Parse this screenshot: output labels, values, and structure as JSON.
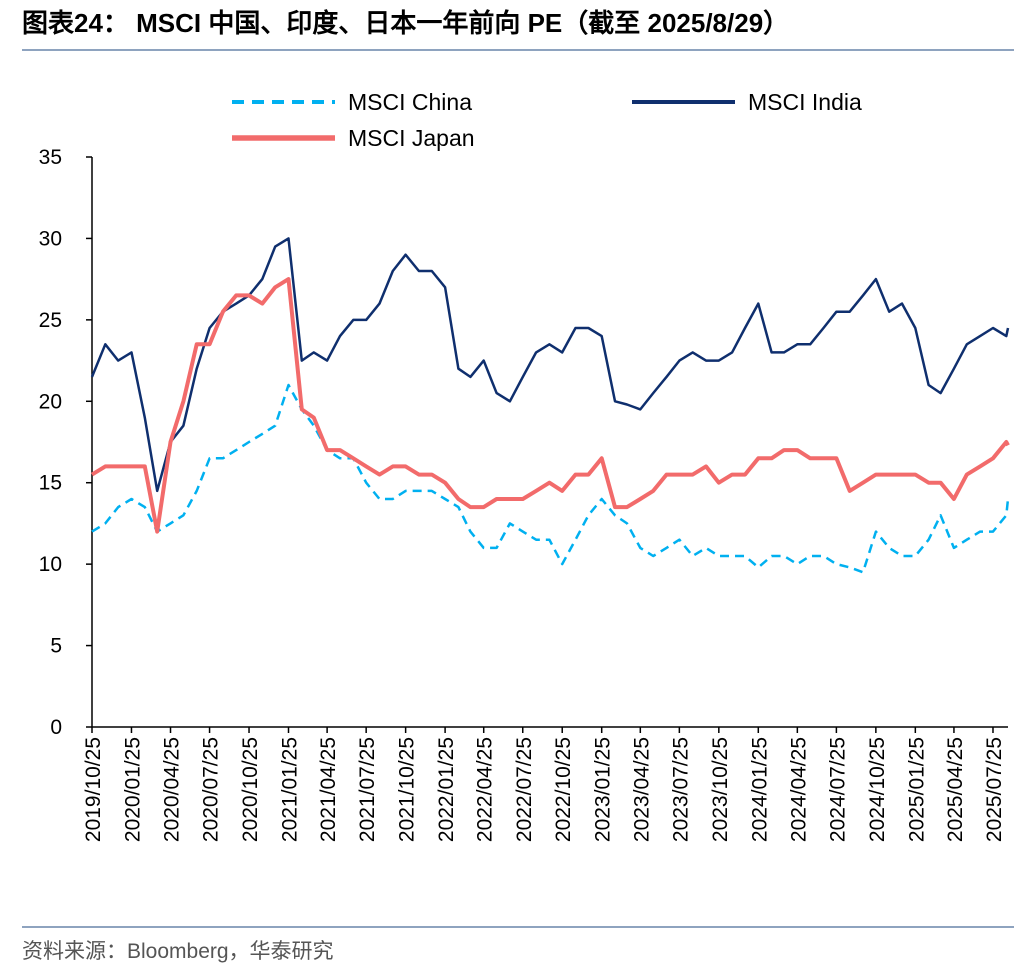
{
  "chart_data": {
    "type": "line",
    "title": "图表24：  MSCI 中国、印度、日本一年前向 PE（截至 2025/8/29）",
    "source": "资料来源：Bloomberg，华泰研究",
    "x": [
      "2019/10/25",
      "2019/11/25",
      "2019/12/25",
      "2020/01/25",
      "2020/02/25",
      "2020/03/25",
      "2020/04/25",
      "2020/05/25",
      "2020/06/25",
      "2020/07/25",
      "2020/08/25",
      "2020/09/25",
      "2020/10/25",
      "2020/11/25",
      "2020/12/25",
      "2021/01/25",
      "2021/02/25",
      "2021/03/25",
      "2021/04/25",
      "2021/05/25",
      "2021/06/25",
      "2021/07/25",
      "2021/08/25",
      "2021/09/25",
      "2021/10/25",
      "2021/11/25",
      "2021/12/25",
      "2022/01/25",
      "2022/02/25",
      "2022/03/25",
      "2022/04/25",
      "2022/05/25",
      "2022/06/25",
      "2022/07/25",
      "2022/08/25",
      "2022/09/25",
      "2022/10/25",
      "2022/11/25",
      "2022/12/25",
      "2023/01/25",
      "2023/02/25",
      "2023/03/25",
      "2023/04/25",
      "2023/05/25",
      "2023/06/25",
      "2023/07/25",
      "2023/08/25",
      "2023/09/25",
      "2023/10/25",
      "2023/11/25",
      "2023/12/25",
      "2024/01/25",
      "2024/02/25",
      "2024/03/25",
      "2024/04/25",
      "2024/05/25",
      "2024/06/25",
      "2024/07/25",
      "2024/08/25",
      "2024/09/25",
      "2024/10/25",
      "2024/11/25",
      "2024/12/25",
      "2025/01/25",
      "2025/02/25",
      "2025/03/25",
      "2025/04/25",
      "2025/05/25",
      "2025/06/25",
      "2025/07/25",
      "2025/08/25",
      "2025/08/29"
    ],
    "series": [
      {
        "name": "MSCI China",
        "color": "#00b0f0",
        "dash": true,
        "values": [
          12,
          12.5,
          13.5,
          14,
          13.5,
          12,
          12.5,
          13,
          14.5,
          16.5,
          16.5,
          17,
          17.5,
          18,
          18.5,
          21,
          19.5,
          18.5,
          17,
          16.5,
          16.5,
          15,
          14,
          14,
          14.5,
          14.5,
          14.5,
          14,
          13.5,
          12,
          11,
          11,
          12.5,
          12,
          11.5,
          11.5,
          10,
          11.5,
          13,
          14,
          13,
          12.5,
          11,
          10.5,
          11,
          11.5,
          10.5,
          11,
          10.5,
          10.5,
          10.5,
          9.8,
          10.5,
          10.5,
          10,
          10.5,
          10.5,
          10,
          9.8,
          9.5,
          12,
          11,
          10.5,
          10.5,
          11.5,
          13,
          11,
          11.5,
          12,
          12,
          13,
          14
        ]
      },
      {
        "name": "MSCI India",
        "color": "#0f2f6e",
        "dash": false,
        "values": [
          21.5,
          23.5,
          22.5,
          23,
          19,
          14.5,
          17.5,
          18.5,
          22,
          24.5,
          25.5,
          26,
          26.5,
          27.5,
          29.5,
          30,
          22.5,
          23,
          22.5,
          24,
          25,
          25,
          26,
          28,
          29,
          28,
          28,
          27,
          22,
          21.5,
          22.5,
          20.5,
          20,
          21.5,
          23,
          23.5,
          23,
          24.5,
          24.5,
          24,
          20,
          19.8,
          19.5,
          20.5,
          21.5,
          22.5,
          23,
          22.5,
          22.5,
          23,
          24.5,
          26,
          23,
          23,
          23.5,
          23.5,
          24.5,
          25.5,
          25.5,
          26.5,
          27.5,
          25.5,
          26,
          24.5,
          21,
          20.5,
          22,
          23.5,
          24,
          24.5,
          24,
          24.5
        ]
      },
      {
        "name": "MSCI Japan",
        "color": "#f26b6b",
        "dash": false,
        "values": [
          15.5,
          16,
          16,
          16,
          16,
          12,
          17.5,
          20,
          23.5,
          23.5,
          25.5,
          26.5,
          26.5,
          26,
          27,
          27.5,
          19.5,
          19,
          17,
          17,
          16.5,
          16,
          15.5,
          16,
          16,
          15.5,
          15.5,
          15,
          14,
          13.5,
          13.5,
          14,
          14,
          14,
          14.5,
          15,
          14.5,
          15.5,
          15.5,
          16.5,
          13.5,
          13.5,
          14,
          14.5,
          15.5,
          15.5,
          15.5,
          16,
          15,
          15.5,
          15.5,
          16.5,
          16.5,
          17,
          17,
          16.5,
          16.5,
          16.5,
          14.5,
          15,
          15.5,
          15.5,
          15.5,
          15.5,
          15,
          15,
          14,
          15.5,
          16,
          16.5,
          17.5,
          17.3
        ]
      }
    ],
    "xlim": [
      "2019/10/25",
      "2025/08/29"
    ],
    "xticks": [
      "2019/10/25",
      "2020/01/25",
      "2020/04/25",
      "2020/07/25",
      "2020/10/25",
      "2021/01/25",
      "2021/04/25",
      "2021/07/25",
      "2021/10/25",
      "2022/01/25",
      "2022/04/25",
      "2022/07/25",
      "2022/10/25",
      "2023/01/25",
      "2023/04/25",
      "2023/07/25",
      "2023/10/25",
      "2024/01/25",
      "2024/04/25",
      "2024/07/25",
      "2024/10/25",
      "2025/01/25",
      "2025/04/25",
      "2025/07/25"
    ],
    "ylim": [
      0,
      35
    ],
    "yticks": [
      0,
      5,
      10,
      15,
      20,
      25,
      30,
      35
    ],
    "grid": false
  }
}
